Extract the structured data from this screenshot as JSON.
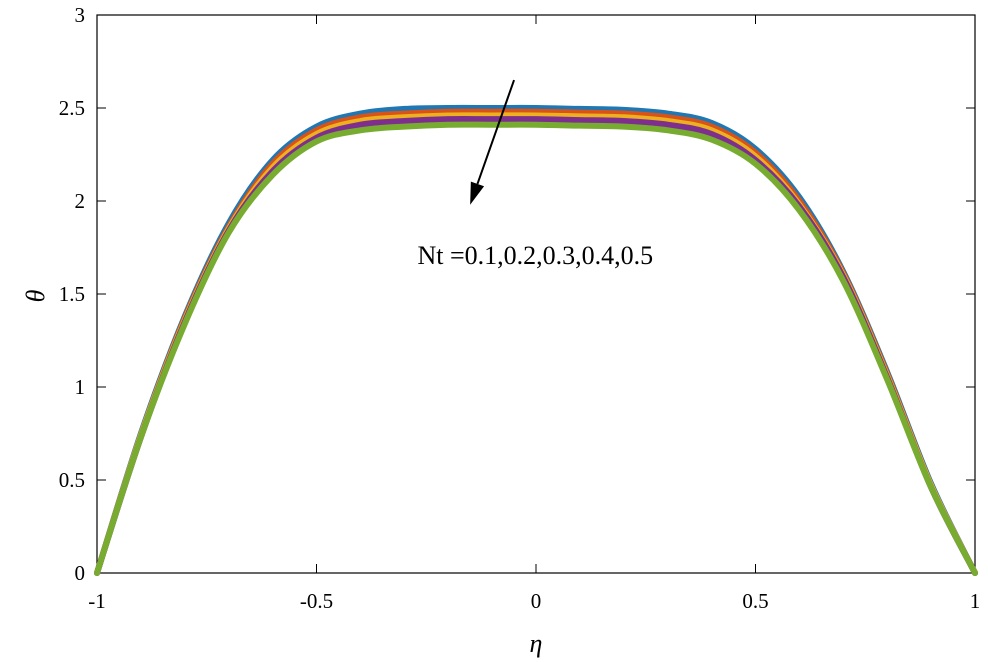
{
  "chart_data": {
    "type": "line",
    "title": "",
    "xlabel": "η",
    "ylabel": "θ",
    "xlim": [
      -1,
      1
    ],
    "ylim": [
      0,
      3
    ],
    "xticks": [
      -1,
      -0.5,
      0,
      0.5,
      1
    ],
    "xtick_labels": [
      "-1",
      "-0.5",
      "0",
      "0.5",
      "1"
    ],
    "yticks": [
      0,
      0.5,
      1,
      1.5,
      2,
      2.5,
      3
    ],
    "ytick_labels": [
      "0",
      "0.5",
      "1",
      "1.5",
      "2",
      "2.5",
      "3"
    ],
    "grid": false,
    "legend": "none",
    "annotation": {
      "text": "Nt =0.1,0.2,0.3,0.4,0.5",
      "arrow_from": [
        -0.05,
        2.65
      ],
      "arrow_to": [
        -0.15,
        1.98
      ],
      "text_at": [
        -0.27,
        1.66
      ]
    },
    "series": [
      {
        "color": "#1f77b4",
        "x": [
          -1,
          -0.9,
          -0.8,
          -0.7,
          -0.6,
          -0.5,
          -0.4,
          -0.3,
          -0.2,
          -0.1,
          0,
          0.1,
          0.2,
          0.3,
          0.4,
          0.5,
          0.6,
          0.7,
          0.8,
          0.9,
          1
        ],
        "y": [
          0,
          0.75,
          1.38,
          1.88,
          2.22,
          2.4,
          2.47,
          2.495,
          2.5,
          2.5,
          2.5,
          2.495,
          2.49,
          2.47,
          2.42,
          2.28,
          2.02,
          1.62,
          1.08,
          0.48,
          0
        ]
      },
      {
        "color": "#d95319",
        "x": [
          -1,
          -0.9,
          -0.8,
          -0.7,
          -0.6,
          -0.5,
          -0.4,
          -0.3,
          -0.2,
          -0.1,
          0,
          0.1,
          0.2,
          0.3,
          0.4,
          0.5,
          0.6,
          0.7,
          0.8,
          0.9,
          1
        ],
        "y": [
          0,
          0.74,
          1.37,
          1.86,
          2.2,
          2.38,
          2.45,
          2.47,
          2.48,
          2.48,
          2.48,
          2.475,
          2.47,
          2.45,
          2.4,
          2.26,
          2.0,
          1.61,
          1.07,
          0.47,
          0
        ]
      },
      {
        "color": "#edb120",
        "x": [
          -1,
          -0.9,
          -0.8,
          -0.7,
          -0.6,
          -0.5,
          -0.4,
          -0.3,
          -0.2,
          -0.1,
          0,
          0.1,
          0.2,
          0.3,
          0.4,
          0.5,
          0.6,
          0.7,
          0.8,
          0.9,
          1
        ],
        "y": [
          0,
          0.74,
          1.36,
          1.85,
          2.18,
          2.36,
          2.43,
          2.45,
          2.46,
          2.46,
          2.46,
          2.455,
          2.45,
          2.43,
          2.38,
          2.24,
          1.98,
          1.6,
          1.06,
          0.47,
          0
        ]
      },
      {
        "color": "#7e2f8e",
        "x": [
          -1,
          -0.9,
          -0.8,
          -0.7,
          -0.6,
          -0.5,
          -0.4,
          -0.3,
          -0.2,
          -0.1,
          0,
          0.1,
          0.2,
          0.3,
          0.4,
          0.5,
          0.6,
          0.7,
          0.8,
          0.9,
          1
        ],
        "y": [
          0,
          0.73,
          1.35,
          1.84,
          2.16,
          2.34,
          2.41,
          2.43,
          2.44,
          2.44,
          2.44,
          2.435,
          2.43,
          2.41,
          2.36,
          2.22,
          1.97,
          1.59,
          1.05,
          0.46,
          0
        ]
      },
      {
        "color": "#77ac30",
        "x": [
          -1,
          -0.9,
          -0.8,
          -0.7,
          -0.6,
          -0.5,
          -0.4,
          -0.3,
          -0.2,
          -0.1,
          0,
          0.1,
          0.2,
          0.3,
          0.4,
          0.5,
          0.6,
          0.7,
          0.8,
          0.9,
          1
        ],
        "y": [
          0,
          0.73,
          1.34,
          1.83,
          2.14,
          2.32,
          2.38,
          2.4,
          2.41,
          2.41,
          2.41,
          2.405,
          2.4,
          2.38,
          2.33,
          2.2,
          1.95,
          1.57,
          1.04,
          0.46,
          0
        ]
      }
    ]
  }
}
